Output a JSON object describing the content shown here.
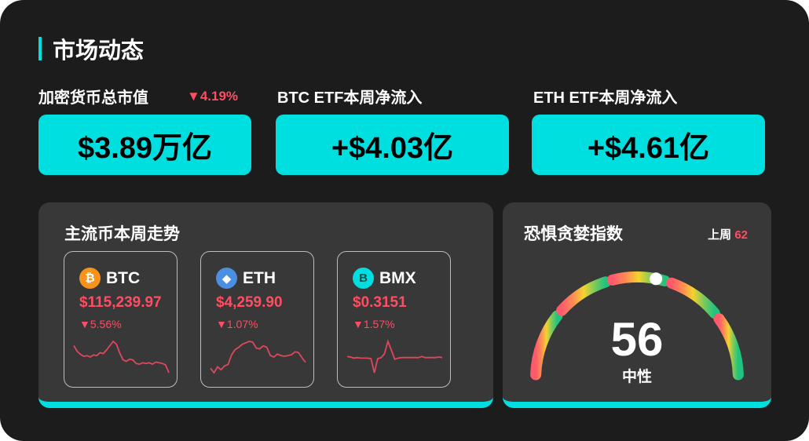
{
  "header": {
    "title": "市场动态"
  },
  "stats": [
    {
      "label": "加密货币总市值",
      "change": "▼4.19%",
      "value": "$3.89万亿"
    },
    {
      "label": "BTC ETF本周净流入",
      "value": "+$4.03亿"
    },
    {
      "label": "ETH ETF本周净流入",
      "value": "+$4.61亿"
    }
  ],
  "weekly": {
    "title": "主流币本周走势",
    "coins": [
      {
        "symbol": "BTC",
        "icon": "bitcoin-icon",
        "icon_glyph": "₿",
        "icon_color": "#f7931a",
        "price": "$115,239.97",
        "change": "▼5.56%",
        "sparkline": [
          60,
          52,
          48,
          45,
          46,
          44,
          47,
          46,
          50,
          49,
          54,
          60,
          66,
          62,
          50,
          40,
          38,
          41,
          40,
          35,
          34,
          36,
          35,
          36,
          34,
          37,
          36,
          35,
          33,
          22
        ]
      },
      {
        "symbol": "ETH",
        "icon": "ethereum-icon",
        "icon_glyph": "◆",
        "icon_color": "#4a8fe2",
        "price": "$4,259.90",
        "change": "▼1.07%",
        "sparkline": [
          30,
          24,
          32,
          28,
          33,
          35,
          48,
          55,
          58,
          62,
          64,
          66,
          65,
          57,
          56,
          60,
          58,
          47,
          45,
          49,
          47,
          46,
          47,
          48,
          52,
          51,
          44,
          38
        ]
      },
      {
        "symbol": "BMX",
        "icon": "bmx-icon",
        "icon_glyph": "B",
        "icon_color": "#00dfe0",
        "price": "$0.3151",
        "change": "▼1.57%",
        "sparkline": [
          50,
          49,
          47,
          48,
          47,
          47,
          47,
          46,
          20,
          46,
          48,
          55,
          78,
          62,
          45,
          47,
          48,
          48,
          48,
          48,
          48,
          48,
          50,
          48,
          48,
          48,
          48,
          49,
          48
        ]
      }
    ]
  },
  "fear_greed": {
    "title": "恐惧贪婪指数",
    "last_week_label": "上周",
    "last_week_value": "62",
    "value": 56,
    "value_text": "56",
    "sentiment": "中性",
    "scale": [
      0,
      100
    ]
  },
  "colors": {
    "accent": "#00dfe0",
    "down": "#ff4d62",
    "background": "#1c1c1c",
    "panel": "#383838"
  }
}
